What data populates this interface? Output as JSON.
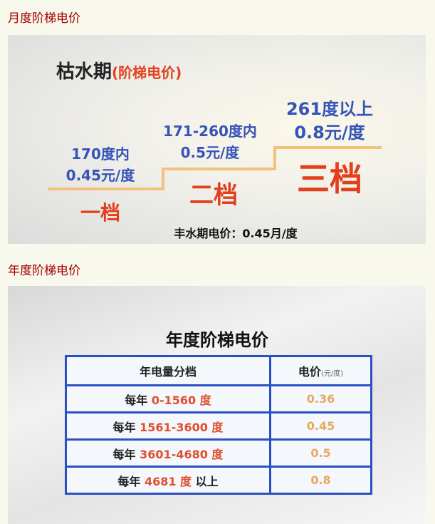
{
  "sections": [
    {
      "heading": "月度阶梯电价"
    },
    {
      "heading": "年度阶梯电价"
    }
  ],
  "monthly": {
    "title": "枯水期",
    "title_sub": "(阶梯电价)",
    "tiers": [
      {
        "range": "170度内",
        "price": "0.45元/度",
        "name": "一档"
      },
      {
        "range": "171-260度内",
        "price": "0.5元/度",
        "name": "二档"
      },
      {
        "range": "261度以上",
        "price": "0.8元/度",
        "name": "三档"
      }
    ],
    "footer": "丰水期电价：0.45月/度",
    "colors": {
      "range": "#3553b8",
      "tier": "#e2401d",
      "step_line": "#f2c27a"
    }
  },
  "yearly": {
    "title": "年度阶梯电价",
    "headers": [
      "年电量分档",
      "电价",
      "(元/度)"
    ],
    "rows": [
      {
        "prefix": "每年",
        "range": "0-1560",
        "unit": "度",
        "suffix": "",
        "price": "0.36"
      },
      {
        "prefix": "每年",
        "range": "1561-3600",
        "unit": "度",
        "suffix": "",
        "price": "0.45"
      },
      {
        "prefix": "每年",
        "range": "3601-4680",
        "unit": "度",
        "suffix": "",
        "price": "0.5"
      },
      {
        "prefix": "每年",
        "range": "4681",
        "unit": "度",
        "suffix": "以上",
        "price": "0.8"
      }
    ],
    "colors": {
      "border": "#2a50c4",
      "range": "#e0502e",
      "price": "#e8a860"
    }
  }
}
